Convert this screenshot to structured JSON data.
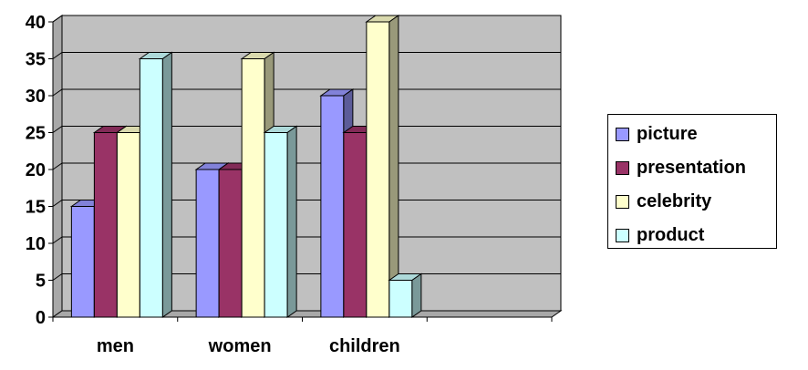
{
  "chart_data": {
    "type": "bar",
    "categories": [
      "men",
      "women",
      "children"
    ],
    "series": [
      {
        "name": "picture",
        "values": [
          15,
          20,
          30
        ],
        "color": "#9999ff"
      },
      {
        "name": "presentation",
        "values": [
          25,
          20,
          25
        ],
        "color": "#993366"
      },
      {
        "name": "celebrity",
        "values": [
          25,
          35,
          40
        ],
        "color": "#ffffcc"
      },
      {
        "name": "product",
        "values": [
          35,
          25,
          5
        ],
        "color": "#ccffff"
      }
    ],
    "ylim": [
      0,
      40
    ],
    "yticks": [
      "0",
      "5",
      "10",
      "15",
      "20",
      "25",
      "30",
      "35",
      "40"
    ],
    "grid": true,
    "legend_position": "right",
    "wall_color": "#c0c0c0",
    "style": "3d-clustered-column"
  }
}
